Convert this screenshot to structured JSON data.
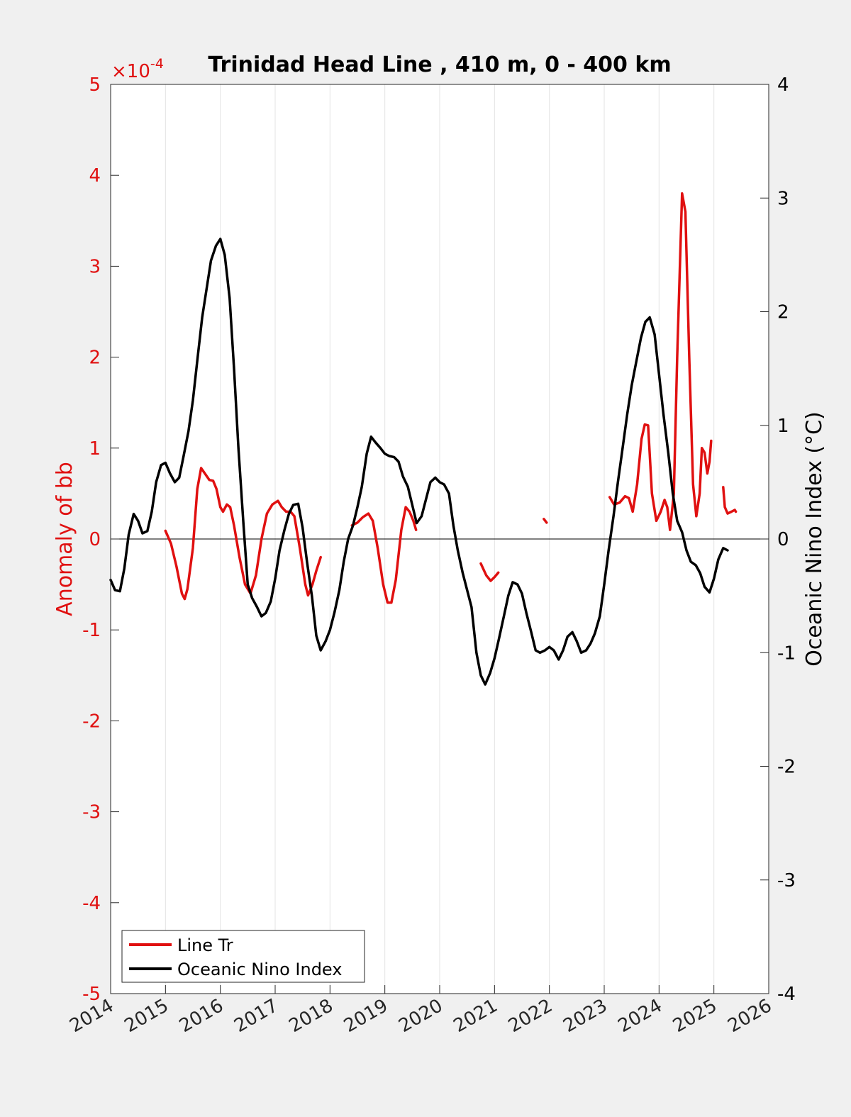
{
  "chart_data": {
    "type": "line",
    "title": "Trinidad Head Line , 410 m, 0 - 400 km",
    "xlim": [
      2014,
      2026
    ],
    "x_ticks": [
      2014,
      2015,
      2016,
      2017,
      2018,
      2019,
      2020,
      2021,
      2022,
      2023,
      2024,
      2025,
      2026
    ],
    "x_tick_labels": [
      "2014",
      "2015",
      "2016",
      "2017",
      "2018",
      "2019",
      "2020",
      "2021",
      "2022",
      "2023",
      "2024",
      "2025",
      "2026"
    ],
    "grid": "vertical",
    "left_axis": {
      "label": "Anomaly of bb",
      "color": "#e01010",
      "exponent_label": "×10",
      "exponent_power": "-4",
      "ylim": [
        -5,
        5
      ],
      "ticks": [
        -5,
        -4,
        -3,
        -2,
        -1,
        0,
        1,
        2,
        3,
        4,
        5
      ],
      "tick_labels": [
        "-5",
        "-4",
        "-3",
        "-2",
        "-1",
        "0",
        "1",
        "2",
        "3",
        "4",
        "5"
      ]
    },
    "right_axis": {
      "label": "Oceanic Nino Index (°C)",
      "color": "#000000",
      "ylim": [
        -4,
        4
      ],
      "ticks": [
        -4,
        -3,
        -2,
        -1,
        0,
        1,
        2,
        3,
        4
      ],
      "tick_labels": [
        "-4",
        "-3",
        "-2",
        "-1",
        "0",
        "1",
        "2",
        "3",
        "4"
      ]
    },
    "legend": {
      "location": "bottom-left",
      "entries": [
        {
          "label": "Line Tr",
          "color": "#e01010"
        },
        {
          "label": "Oceanic Nino Index",
          "color": "#000000"
        }
      ]
    },
    "series": [
      {
        "name": "Line Tr",
        "axis": "left",
        "color": "#e01010",
        "segments": [
          [
            [
              2015.0,
              0.09
            ],
            [
              2015.1,
              -0.05
            ],
            [
              2015.2,
              -0.3
            ],
            [
              2015.3,
              -0.6
            ],
            [
              2015.35,
              -0.66
            ],
            [
              2015.4,
              -0.55
            ],
            [
              2015.5,
              -0.1
            ],
            [
              2015.58,
              0.55
            ],
            [
              2015.65,
              0.78
            ],
            [
              2015.72,
              0.72
            ],
            [
              2015.8,
              0.65
            ],
            [
              2015.87,
              0.64
            ],
            [
              2015.93,
              0.55
            ],
            [
              2016.0,
              0.35
            ],
            [
              2016.05,
              0.3
            ],
            [
              2016.12,
              0.38
            ],
            [
              2016.18,
              0.35
            ],
            [
              2016.25,
              0.15
            ],
            [
              2016.35,
              -0.2
            ],
            [
              2016.45,
              -0.5
            ],
            [
              2016.55,
              -0.6
            ],
            [
              2016.65,
              -0.4
            ],
            [
              2016.75,
              0.0
            ],
            [
              2016.85,
              0.28
            ],
            [
              2016.95,
              0.38
            ],
            [
              2017.05,
              0.42
            ],
            [
              2017.12,
              0.35
            ],
            [
              2017.2,
              0.3
            ],
            [
              2017.28,
              0.3
            ],
            [
              2017.35,
              0.25
            ],
            [
              2017.45,
              -0.1
            ],
            [
              2017.55,
              -0.5
            ],
            [
              2017.6,
              -0.62
            ],
            [
              2017.68,
              -0.5
            ],
            [
              2017.75,
              -0.35
            ],
            [
              2017.83,
              -0.2
            ]
          ],
          [
            [
              2018.4,
              0.15
            ],
            [
              2018.5,
              0.18
            ],
            [
              2018.6,
              0.24
            ],
            [
              2018.7,
              0.28
            ],
            [
              2018.78,
              0.2
            ],
            [
              2018.87,
              -0.1
            ],
            [
              2018.97,
              -0.5
            ],
            [
              2019.05,
              -0.7
            ],
            [
              2019.12,
              -0.7
            ],
            [
              2019.2,
              -0.45
            ],
            [
              2019.3,
              0.1
            ],
            [
              2019.38,
              0.35
            ],
            [
              2019.45,
              0.3
            ],
            [
              2019.52,
              0.2
            ],
            [
              2019.57,
              0.1
            ]
          ],
          [
            [
              2020.75,
              -0.27
            ],
            [
              2020.85,
              -0.4
            ],
            [
              2020.93,
              -0.46
            ],
            [
              2021.0,
              -0.42
            ],
            [
              2021.07,
              -0.37
            ]
          ],
          [
            [
              2021.9,
              0.22
            ],
            [
              2021.95,
              0.18
            ]
          ],
          [
            [
              2023.1,
              0.46
            ],
            [
              2023.18,
              0.38
            ],
            [
              2023.28,
              0.4
            ],
            [
              2023.38,
              0.47
            ],
            [
              2023.45,
              0.45
            ],
            [
              2023.52,
              0.3
            ],
            [
              2023.6,
              0.6
            ],
            [
              2023.68,
              1.1
            ],
            [
              2023.74,
              1.26
            ],
            [
              2023.8,
              1.25
            ],
            [
              2023.87,
              0.5
            ],
            [
              2023.95,
              0.2
            ],
            [
              2024.03,
              0.3
            ],
            [
              2024.1,
              0.43
            ],
            [
              2024.15,
              0.35
            ],
            [
              2024.2,
              0.1
            ],
            [
              2024.27,
              0.5
            ],
            [
              2024.33,
              2.0
            ],
            [
              2024.42,
              3.8
            ],
            [
              2024.48,
              3.6
            ],
            [
              2024.55,
              2.0
            ],
            [
              2024.62,
              0.6
            ],
            [
              2024.68,
              0.25
            ],
            [
              2024.74,
              0.5
            ],
            [
              2024.78,
              1.0
            ],
            [
              2024.83,
              0.95
            ],
            [
              2024.88,
              0.72
            ],
            [
              2024.92,
              0.85
            ],
            [
              2024.95,
              1.08
            ]
          ],
          [
            [
              2025.17,
              0.57
            ],
            [
              2025.2,
              0.35
            ],
            [
              2025.25,
              0.28
            ],
            [
              2025.32,
              0.3
            ],
            [
              2025.38,
              0.32
            ],
            [
              2025.4,
              0.3
            ]
          ]
        ]
      },
      {
        "name": "Oceanic Nino Index",
        "axis": "right",
        "color": "#000000",
        "points": [
          [
            2014.0,
            -0.36
          ],
          [
            2014.08,
            -0.45
          ],
          [
            2014.17,
            -0.46
          ],
          [
            2014.25,
            -0.26
          ],
          [
            2014.33,
            0.04
          ],
          [
            2014.42,
            0.22
          ],
          [
            2014.5,
            0.16
          ],
          [
            2014.58,
            0.05
          ],
          [
            2014.67,
            0.07
          ],
          [
            2014.75,
            0.24
          ],
          [
            2014.83,
            0.5
          ],
          [
            2014.92,
            0.65
          ],
          [
            2015.0,
            0.67
          ],
          [
            2015.08,
            0.58
          ],
          [
            2015.17,
            0.5
          ],
          [
            2015.25,
            0.54
          ],
          [
            2015.33,
            0.73
          ],
          [
            2015.42,
            0.95
          ],
          [
            2015.5,
            1.22
          ],
          [
            2015.58,
            1.57
          ],
          [
            2015.67,
            1.95
          ],
          [
            2015.75,
            2.2
          ],
          [
            2015.83,
            2.45
          ],
          [
            2015.92,
            2.58
          ],
          [
            2016.0,
            2.64
          ],
          [
            2016.08,
            2.5
          ],
          [
            2016.17,
            2.12
          ],
          [
            2016.25,
            1.5
          ],
          [
            2016.33,
            0.8
          ],
          [
            2016.42,
            0.15
          ],
          [
            2016.5,
            -0.4
          ],
          [
            2016.58,
            -0.52
          ],
          [
            2016.67,
            -0.6
          ],
          [
            2016.75,
            -0.68
          ],
          [
            2016.83,
            -0.65
          ],
          [
            2016.92,
            -0.55
          ],
          [
            2017.0,
            -0.35
          ],
          [
            2017.08,
            -0.1
          ],
          [
            2017.17,
            0.08
          ],
          [
            2017.25,
            0.22
          ],
          [
            2017.33,
            0.3
          ],
          [
            2017.42,
            0.31
          ],
          [
            2017.5,
            0.1
          ],
          [
            2017.58,
            -0.2
          ],
          [
            2017.67,
            -0.5
          ],
          [
            2017.75,
            -0.85
          ],
          [
            2017.83,
            -0.98
          ],
          [
            2017.92,
            -0.9
          ],
          [
            2018.0,
            -0.8
          ],
          [
            2018.08,
            -0.65
          ],
          [
            2018.17,
            -0.45
          ],
          [
            2018.25,
            -0.2
          ],
          [
            2018.33,
            0.0
          ],
          [
            2018.42,
            0.12
          ],
          [
            2018.5,
            0.28
          ],
          [
            2018.58,
            0.46
          ],
          [
            2018.67,
            0.75
          ],
          [
            2018.75,
            0.9
          ],
          [
            2018.83,
            0.85
          ],
          [
            2018.92,
            0.8
          ],
          [
            2019.0,
            0.75
          ],
          [
            2019.08,
            0.73
          ],
          [
            2019.17,
            0.72
          ],
          [
            2019.25,
            0.68
          ],
          [
            2019.33,
            0.55
          ],
          [
            2019.42,
            0.46
          ],
          [
            2019.5,
            0.3
          ],
          [
            2019.58,
            0.14
          ],
          [
            2019.67,
            0.2
          ],
          [
            2019.75,
            0.35
          ],
          [
            2019.83,
            0.5
          ],
          [
            2019.92,
            0.54
          ],
          [
            2020.0,
            0.5
          ],
          [
            2020.08,
            0.48
          ],
          [
            2020.17,
            0.4
          ],
          [
            2020.25,
            0.12
          ],
          [
            2020.33,
            -0.1
          ],
          [
            2020.42,
            -0.3
          ],
          [
            2020.5,
            -0.45
          ],
          [
            2020.58,
            -0.6
          ],
          [
            2020.67,
            -1.0
          ],
          [
            2020.75,
            -1.2
          ],
          [
            2020.83,
            -1.28
          ],
          [
            2020.92,
            -1.18
          ],
          [
            2021.0,
            -1.05
          ],
          [
            2021.08,
            -0.88
          ],
          [
            2021.17,
            -0.68
          ],
          [
            2021.25,
            -0.5
          ],
          [
            2021.33,
            -0.38
          ],
          [
            2021.42,
            -0.4
          ],
          [
            2021.5,
            -0.48
          ],
          [
            2021.58,
            -0.65
          ],
          [
            2021.67,
            -0.82
          ],
          [
            2021.75,
            -0.98
          ],
          [
            2021.83,
            -1.0
          ],
          [
            2021.92,
            -0.98
          ],
          [
            2022.0,
            -0.95
          ],
          [
            2022.08,
            -0.98
          ],
          [
            2022.17,
            -1.06
          ],
          [
            2022.25,
            -0.98
          ],
          [
            2022.33,
            -0.86
          ],
          [
            2022.42,
            -0.82
          ],
          [
            2022.5,
            -0.9
          ],
          [
            2022.58,
            -1.0
          ],
          [
            2022.67,
            -0.98
          ],
          [
            2022.75,
            -0.92
          ],
          [
            2022.83,
            -0.83
          ],
          [
            2022.92,
            -0.68
          ],
          [
            2023.0,
            -0.4
          ],
          [
            2023.08,
            -0.1
          ],
          [
            2023.17,
            0.2
          ],
          [
            2023.25,
            0.5
          ],
          [
            2023.33,
            0.78
          ],
          [
            2023.42,
            1.1
          ],
          [
            2023.5,
            1.35
          ],
          [
            2023.58,
            1.55
          ],
          [
            2023.67,
            1.77
          ],
          [
            2023.75,
            1.91
          ],
          [
            2023.83,
            1.95
          ],
          [
            2023.92,
            1.8
          ],
          [
            2024.0,
            1.45
          ],
          [
            2024.08,
            1.1
          ],
          [
            2024.17,
            0.75
          ],
          [
            2024.25,
            0.4
          ],
          [
            2024.33,
            0.16
          ],
          [
            2024.42,
            0.06
          ],
          [
            2024.5,
            -0.1
          ],
          [
            2024.58,
            -0.2
          ],
          [
            2024.67,
            -0.23
          ],
          [
            2024.75,
            -0.3
          ],
          [
            2024.83,
            -0.42
          ],
          [
            2024.92,
            -0.47
          ],
          [
            2025.0,
            -0.35
          ],
          [
            2025.08,
            -0.18
          ],
          [
            2025.17,
            -0.08
          ],
          [
            2025.25,
            -0.1
          ]
        ]
      }
    ]
  }
}
